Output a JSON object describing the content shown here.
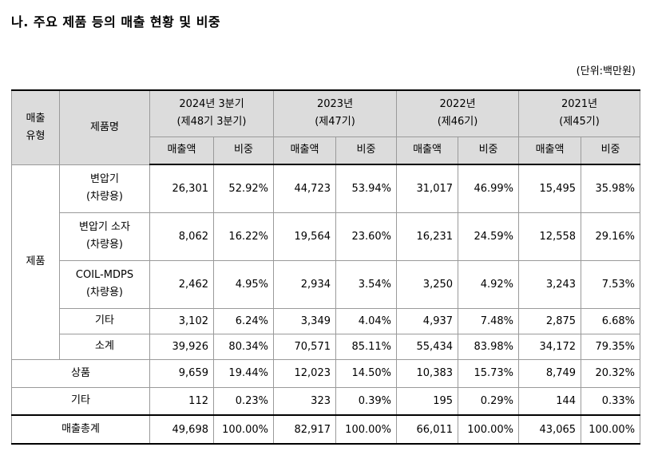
{
  "title": "나. 주요 제품 등의 매출 현황 및 비중",
  "unit": "(단위:백만원)",
  "header": {
    "type_line1": "매출",
    "type_line2": "유형",
    "product": "제품명",
    "periods": [
      {
        "year": "2024년 3분기",
        "term": "(제48기 3분기)"
      },
      {
        "year": "2023년",
        "term": "(제47기)"
      },
      {
        "year": "2022년",
        "term": "(제46기)"
      },
      {
        "year": "2021년",
        "term": "(제45기)"
      }
    ],
    "sales": "매출액",
    "ratio": "비중"
  },
  "group_product": "제품",
  "rows": [
    {
      "name1": "변압기",
      "name2": "(차량용)",
      "values": [
        "26,301",
        "52.92%",
        "44,723",
        "53.94%",
        "31,017",
        "46.99%",
        "15,495",
        "35.98%"
      ]
    },
    {
      "name1": "변압기 소자",
      "name2": "(차량용)",
      "values": [
        "8,062",
        "16.22%",
        "19,564",
        "23.60%",
        "16,231",
        "24.59%",
        "12,558",
        "29.16%"
      ]
    },
    {
      "name1": "COIL-MDPS",
      "name2": "(차량용)",
      "values": [
        "2,462",
        "4.95%",
        "2,934",
        "3.54%",
        "3,250",
        "4.92%",
        "3,243",
        "7.53%"
      ]
    },
    {
      "name1": "기타",
      "values": [
        "3,102",
        "6.24%",
        "3,349",
        "4.04%",
        "4,937",
        "7.48%",
        "2,875",
        "6.68%"
      ]
    },
    {
      "name1": "소계",
      "values": [
        "39,926",
        "80.34%",
        "70,571",
        "85.11%",
        "55,434",
        "83.98%",
        "34,172",
        "79.35%"
      ]
    },
    {
      "name1": "상품",
      "values": [
        "9,659",
        "19.44%",
        "12,023",
        "14.50%",
        "10,383",
        "15.73%",
        "8,749",
        "20.32%"
      ]
    },
    {
      "name1": "기타",
      "values": [
        "112",
        "0.23%",
        "323",
        "0.39%",
        "195",
        "0.29%",
        "144",
        "0.33%"
      ]
    },
    {
      "name1": "매출총계",
      "values": [
        "49,698",
        "100.00%",
        "82,917",
        "100.00%",
        "66,011",
        "100.00%",
        "43,065",
        "100.00%"
      ]
    }
  ]
}
